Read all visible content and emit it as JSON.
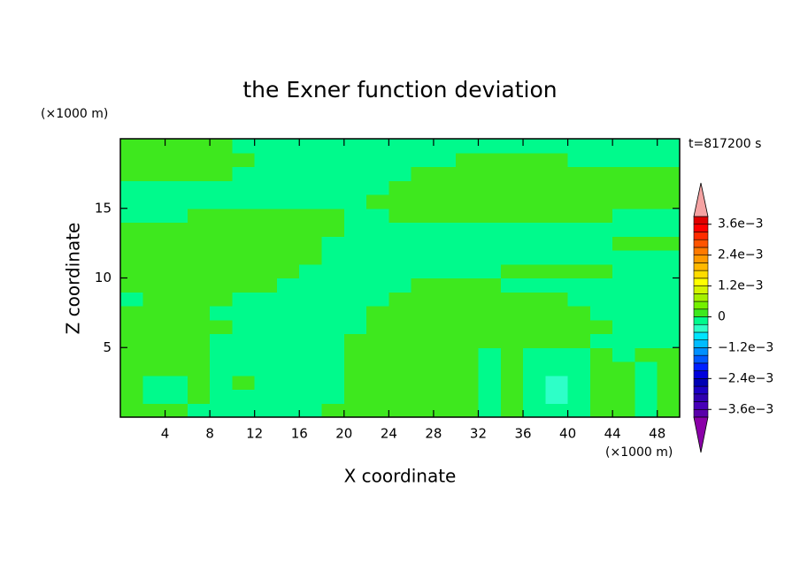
{
  "chart_data": {
    "type": "contourf",
    "title": "the Exner function deviation",
    "x_label": "X coordinate",
    "y_label": "Z coordinate",
    "x_unit": "(×1000 m)",
    "y_unit": "(×1000 m)",
    "time_label": "t=817200 s",
    "xlim": [
      0,
      50
    ],
    "ylim": [
      0,
      20
    ],
    "xticks": [
      4,
      8,
      12,
      16,
      20,
      24,
      28,
      32,
      36,
      40,
      44,
      48
    ],
    "yticks": [
      5,
      10,
      15
    ],
    "x": [
      1,
      3,
      5,
      7,
      9,
      11,
      13,
      15,
      17,
      19,
      21,
      23,
      25,
      27,
      29,
      31,
      33,
      35,
      37,
      39,
      41,
      43,
      45,
      47,
      49
    ],
    "y": [
      0.5,
      1.5,
      2.5,
      3.5,
      4.5,
      5.5,
      6.5,
      7.5,
      8.5,
      9.5,
      10.5,
      11.5,
      12.5,
      13.5,
      14.5,
      15.5,
      16.5,
      17.5,
      18.5,
      19.5
    ],
    "z": [
      [
        0.0001,
        0.0001,
        0.0001,
        -0.0001,
        -0.0001,
        -0.0001,
        -0.0001,
        -0.0001,
        -0.0001,
        0.0001,
        0.0001,
        0.0001,
        0.0001,
        0.0001,
        0.0001,
        0.0001,
        -0.0001,
        0.0001,
        -0.0001,
        -0.0001,
        -0.0001,
        0.0001,
        0.0001,
        -0.0001,
        0.0001
      ],
      [
        0.0001,
        -0.0001,
        -0.0001,
        0.0001,
        -0.0001,
        -0.0001,
        -0.0001,
        -0.0001,
        -0.0001,
        -0.0001,
        0.0001,
        0.0001,
        0.0001,
        0.0001,
        0.0001,
        0.0001,
        -0.0001,
        0.0001,
        -0.0001,
        -0.0004,
        -0.0001,
        0.0001,
        0.0001,
        -0.0001,
        0.0001
      ],
      [
        0.0001,
        -0.0001,
        -0.0001,
        0.0001,
        -0.0001,
        0.0001,
        -0.0001,
        -0.0001,
        -0.0001,
        -0.0001,
        0.0001,
        0.0001,
        0.0001,
        0.0001,
        0.0001,
        0.0001,
        -0.0001,
        0.0001,
        -0.0001,
        -0.0004,
        -0.0001,
        0.0001,
        0.0001,
        -0.0001,
        0.0001
      ],
      [
        0.0001,
        0.0001,
        0.0001,
        0.0001,
        -0.0001,
        -0.0001,
        -0.0001,
        -0.0001,
        -0.0001,
        -0.0001,
        0.0001,
        0.0001,
        0.0001,
        0.0001,
        0.0001,
        0.0001,
        -0.0001,
        0.0001,
        -0.0001,
        -0.0001,
        -0.0001,
        0.0001,
        0.0001,
        -0.0001,
        0.0001
      ],
      [
        0.0001,
        0.0001,
        0.0001,
        0.0001,
        -0.0001,
        -0.0001,
        -0.0001,
        -0.0001,
        -0.0001,
        -0.0001,
        0.0001,
        0.0001,
        0.0001,
        0.0001,
        0.0001,
        0.0001,
        -0.0001,
        0.0001,
        -0.0001,
        -0.0001,
        -0.0001,
        0.0001,
        -0.0001,
        0.0001,
        0.0001
      ],
      [
        0.0001,
        0.0001,
        0.0001,
        0.0001,
        -0.0001,
        -0.0001,
        -0.0001,
        -0.0001,
        -0.0001,
        -0.0001,
        0.0001,
        0.0001,
        0.0001,
        0.0001,
        0.0001,
        0.0001,
        0.0001,
        0.0001,
        0.0001,
        0.0001,
        0.0001,
        -0.0001,
        -0.0001,
        -0.0001,
        -0.0001
      ],
      [
        0.0001,
        0.0001,
        0.0001,
        0.0001,
        0.0001,
        -0.0001,
        -0.0001,
        -0.0001,
        -0.0001,
        -0.0001,
        -0.0001,
        0.0001,
        0.0001,
        0.0001,
        0.0001,
        0.0001,
        0.0001,
        0.0001,
        0.0001,
        0.0001,
        0.0001,
        0.0001,
        -0.0001,
        -0.0001,
        -0.0001
      ],
      [
        0.0001,
        0.0001,
        0.0001,
        0.0001,
        -0.0001,
        -0.0001,
        -0.0001,
        -0.0001,
        -0.0001,
        -0.0001,
        -0.0001,
        0.0001,
        0.0001,
        0.0001,
        0.0001,
        0.0001,
        0.0001,
        0.0001,
        0.0001,
        0.0001,
        0.0001,
        -0.0001,
        -0.0001,
        -0.0001,
        -0.0001
      ],
      [
        -0.0001,
        0.0001,
        0.0001,
        0.0001,
        0.0001,
        -0.0001,
        -0.0001,
        -0.0001,
        -0.0001,
        -0.0001,
        -0.0001,
        -0.0001,
        0.0001,
        0.0001,
        0.0001,
        0.0001,
        0.0001,
        0.0001,
        0.0001,
        0.0001,
        -0.0001,
        -0.0001,
        -0.0001,
        -0.0001,
        -0.0001
      ],
      [
        0.0001,
        0.0001,
        0.0001,
        0.0001,
        0.0001,
        0.0001,
        0.0001,
        -0.0001,
        -0.0001,
        -0.0001,
        -0.0001,
        -0.0001,
        -0.0001,
        0.0001,
        0.0001,
        0.0001,
        0.0001,
        -0.0001,
        -0.0001,
        -0.0001,
        -0.0001,
        -0.0001,
        -0.0001,
        -0.0001,
        -0.0001
      ],
      [
        0.0001,
        0.0001,
        0.0001,
        0.0001,
        0.0001,
        0.0001,
        0.0001,
        0.0001,
        -0.0001,
        -0.0001,
        -0.0001,
        -0.0001,
        -0.0001,
        -0.0001,
        -0.0001,
        -0.0001,
        -0.0001,
        0.0001,
        0.0001,
        0.0001,
        0.0001,
        0.0001,
        -0.0001,
        -0.0001,
        -0.0001
      ],
      [
        0.0001,
        0.0001,
        0.0001,
        0.0001,
        0.0001,
        0.0001,
        0.0001,
        0.0001,
        0.0001,
        -0.0001,
        -0.0001,
        -0.0001,
        -0.0001,
        -0.0001,
        -0.0001,
        -0.0001,
        -0.0001,
        -0.0001,
        -0.0001,
        -0.0001,
        -0.0001,
        -0.0001,
        -0.0001,
        -0.0001,
        -0.0001
      ],
      [
        0.0001,
        0.0001,
        0.0001,
        0.0001,
        0.0001,
        0.0001,
        0.0001,
        0.0001,
        0.0001,
        -0.0001,
        -0.0001,
        -0.0001,
        -0.0001,
        -0.0001,
        -0.0001,
        -0.0001,
        -0.0001,
        -0.0001,
        -0.0001,
        -0.0001,
        -0.0001,
        -0.0001,
        0.0001,
        0.0001,
        0.0001
      ],
      [
        0.0001,
        0.0001,
        0.0001,
        0.0001,
        0.0001,
        0.0001,
        0.0001,
        0.0001,
        0.0001,
        0.0001,
        -0.0001,
        -0.0001,
        -0.0001,
        -0.0001,
        -0.0001,
        -0.0001,
        -0.0001,
        -0.0001,
        -0.0001,
        -0.0001,
        -0.0001,
        -0.0001,
        -0.0001,
        -0.0001,
        -0.0001
      ],
      [
        -0.0001,
        -0.0001,
        -0.0001,
        0.0001,
        0.0001,
        0.0001,
        0.0001,
        0.0001,
        0.0001,
        0.0001,
        -0.0001,
        -0.0001,
        0.0001,
        0.0001,
        0.0001,
        0.0001,
        0.0001,
        0.0001,
        0.0001,
        0.0001,
        0.0001,
        0.0001,
        -0.0001,
        -0.0001,
        -0.0001
      ],
      [
        -0.0001,
        -0.0001,
        -0.0001,
        -0.0001,
        -0.0001,
        -0.0001,
        -0.0001,
        -0.0001,
        -0.0001,
        -0.0001,
        -0.0001,
        0.0001,
        0.0001,
        0.0001,
        0.0001,
        0.0001,
        0.0001,
        0.0001,
        0.0001,
        0.0001,
        0.0001,
        0.0001,
        0.0001,
        0.0001,
        0.0001
      ],
      [
        -0.0001,
        -0.0001,
        -0.0001,
        -0.0001,
        -0.0001,
        -0.0001,
        -0.0001,
        -0.0001,
        -0.0001,
        -0.0001,
        -0.0001,
        -0.0001,
        0.0001,
        0.0001,
        0.0001,
        0.0001,
        0.0001,
        0.0001,
        0.0001,
        0.0001,
        0.0001,
        0.0001,
        0.0001,
        0.0001,
        0.0001
      ],
      [
        0.0001,
        0.0001,
        0.0001,
        0.0001,
        0.0001,
        -0.0001,
        -0.0001,
        -0.0001,
        -0.0001,
        -0.0001,
        -0.0001,
        -0.0001,
        -0.0001,
        0.0001,
        0.0001,
        0.0001,
        0.0001,
        0.0001,
        0.0001,
        0.0001,
        0.0001,
        0.0001,
        0.0001,
        0.0001,
        0.0001
      ],
      [
        0.0001,
        0.0001,
        0.0001,
        0.0001,
        0.0001,
        0.0001,
        -0.0001,
        -0.0001,
        -0.0001,
        -0.0001,
        -0.0001,
        -0.0001,
        -0.0001,
        -0.0001,
        -0.0001,
        0.0001,
        0.0001,
        0.0001,
        0.0001,
        0.0001,
        -0.0001,
        -0.0001,
        -0.0001,
        -0.0001,
        -0.0001
      ],
      [
        0.0001,
        0.0001,
        0.0001,
        0.0001,
        0.0001,
        -0.0001,
        -0.0001,
        -0.0001,
        -0.0001,
        -0.0001,
        -0.0001,
        -0.0001,
        -0.0001,
        -0.0001,
        -0.0001,
        -0.0001,
        -0.0001,
        -0.0001,
        -0.0001,
        -0.0001,
        -0.0001,
        -0.0001,
        -0.0001,
        -0.0001,
        -0.0001
      ]
    ],
    "colorbar": {
      "levels": [
        -0.0039,
        -0.0036,
        -0.0033,
        -0.003,
        -0.0027,
        -0.0024,
        -0.0021,
        -0.0018,
        -0.0015,
        -0.0012,
        -0.0009,
        -0.0006,
        -0.0003,
        0,
        0.0003,
        0.0006,
        0.0009,
        0.0012,
        0.0015,
        0.0018,
        0.0021,
        0.0024,
        0.0027,
        0.003,
        0.0033,
        0.0036,
        0.0039
      ],
      "colors": [
        "#5a00aa",
        "#4800b8",
        "#3000b0",
        "#1c00c4",
        "#0000b4",
        "#0000dc",
        "#0020ff",
        "#0058ff",
        "#0090ff",
        "#00bcff",
        "#00e4ff",
        "#2effc8",
        "#00fa8c",
        "#3ee81e",
        "#74f000",
        "#a4f000",
        "#d4f400",
        "#ffff00",
        "#ffdc00",
        "#ffb800",
        "#ff9a00",
        "#ff7a00",
        "#ff5400",
        "#ff2c00",
        "#ff0000",
        "#e00000"
      ],
      "over_color": "#f5a3a3",
      "under_color": "#8a00a8",
      "ticks": [
        {
          "value": 0.0036,
          "label": "3.6e−3"
        },
        {
          "value": 0.0024,
          "label": "2.4e−3"
        },
        {
          "value": 0.0012,
          "label": "1.2e−3"
        },
        0,
        {
          "value": -0.0012,
          "label": "−1.2e−3"
        },
        {
          "value": -0.0024,
          "label": "−2.4e−3"
        },
        {
          "value": -0.0036,
          "label": "−3.6e−3"
        }
      ]
    }
  }
}
